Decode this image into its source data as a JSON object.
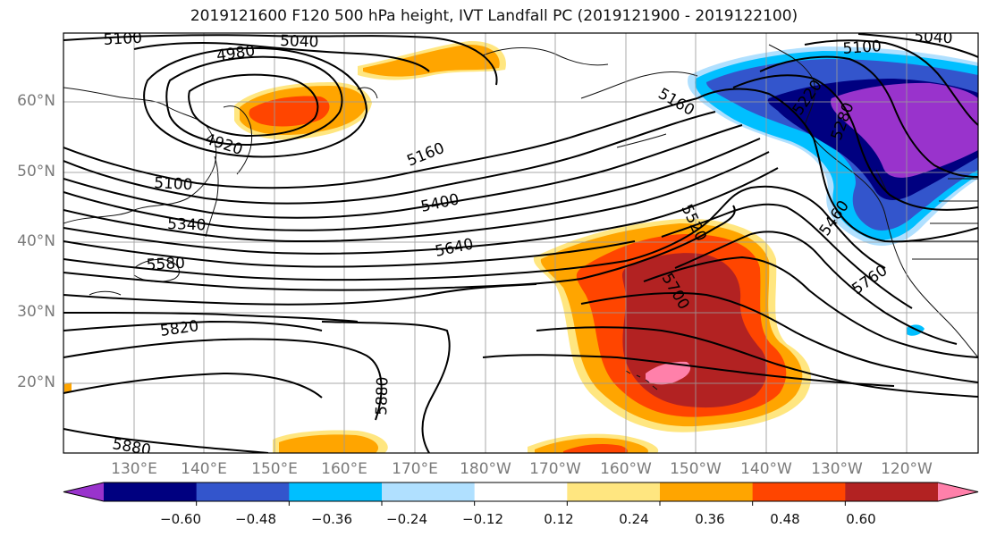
{
  "title": "2019121600 F120 500 hPa height, IVT Landfall PC (2019121900 - 2019122100)",
  "lat_labels": [
    "60°N",
    "50°N",
    "40°N",
    "30°N",
    "20°N"
  ],
  "lon_labels": [
    "130°E",
    "140°E",
    "150°E",
    "160°E",
    "170°E",
    "180°W",
    "170°W",
    "160°W",
    "150°W",
    "140°W",
    "130°W",
    "120°W"
  ],
  "colorbar": {
    "ticks": [
      "−0.60",
      "−0.48",
      "−0.36",
      "−0.24",
      "−0.12",
      "0.12",
      "0.24",
      "0.36",
      "0.48",
      "0.60"
    ],
    "colors": [
      "#9933cc",
      "#000080",
      "#3355cc",
      "#00bfff",
      "#b0e0ff",
      "#ffffff",
      "#ffe680",
      "#ffa500",
      "#ff4500",
      "#b22222",
      "#ff80aa"
    ]
  },
  "contour_labels": [
    "5100",
    "5040",
    "4980",
    "4920",
    "5160",
    "5100",
    "5340",
    "5400",
    "5580",
    "5640",
    "5820",
    "5880",
    "5880",
    "5700",
    "5520",
    "5760",
    "5460",
    "5160",
    "5100",
    "5040",
    "5220",
    "5280"
  ],
  "chart_data": {
    "type": "map",
    "field": "500 hPa height contours (m) with IVT landfall PC shading",
    "lat_range": [
      10,
      70
    ],
    "lon_range": [
      "120°E",
      "110°W"
    ],
    "grid": true
  }
}
